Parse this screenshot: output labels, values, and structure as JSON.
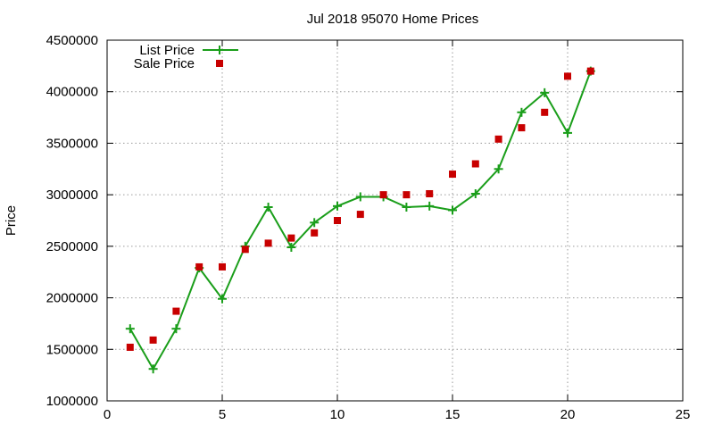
{
  "chart_data": {
    "type": "line",
    "title": "Jul 2018 95070 Home Prices",
    "xlabel": "",
    "ylabel": "Price",
    "xlim": [
      0,
      25
    ],
    "ylim": [
      1000000,
      4500000
    ],
    "x_ticks": [
      0,
      5,
      10,
      15,
      20,
      25
    ],
    "y_ticks": [
      1000000,
      1500000,
      2000000,
      2500000,
      3000000,
      3500000,
      4000000,
      4500000
    ],
    "grid": true,
    "legend_position": "top-left",
    "series": [
      {
        "name": "List Price",
        "style": "line-with-plus-markers",
        "color": "#1a9e1a",
        "x": [
          1,
          2,
          3,
          4,
          5,
          6,
          7,
          8,
          9,
          10,
          11,
          12,
          13,
          14,
          15,
          16,
          17,
          18,
          19,
          20,
          21
        ],
        "y": [
          1700000,
          1310000,
          1700000,
          2290000,
          1990000,
          2500000,
          2880000,
          2490000,
          2730000,
          2890000,
          2980000,
          2980000,
          2880000,
          2890000,
          2850000,
          3010000,
          3250000,
          3800000,
          3990000,
          3600000,
          4200000
        ]
      },
      {
        "name": "Sale Price",
        "style": "square-markers",
        "color": "#c80000",
        "x": [
          1,
          2,
          3,
          4,
          5,
          6,
          7,
          8,
          9,
          10,
          11,
          12,
          13,
          14,
          15,
          16,
          17,
          18,
          19,
          20,
          21
        ],
        "y": [
          1520000,
          1590000,
          1870000,
          2300000,
          2300000,
          2470000,
          2530000,
          2580000,
          2630000,
          2750000,
          2810000,
          3000000,
          3000000,
          3010000,
          3200000,
          3300000,
          3540000,
          3650000,
          3800000,
          4150000,
          4200000
        ]
      }
    ]
  }
}
